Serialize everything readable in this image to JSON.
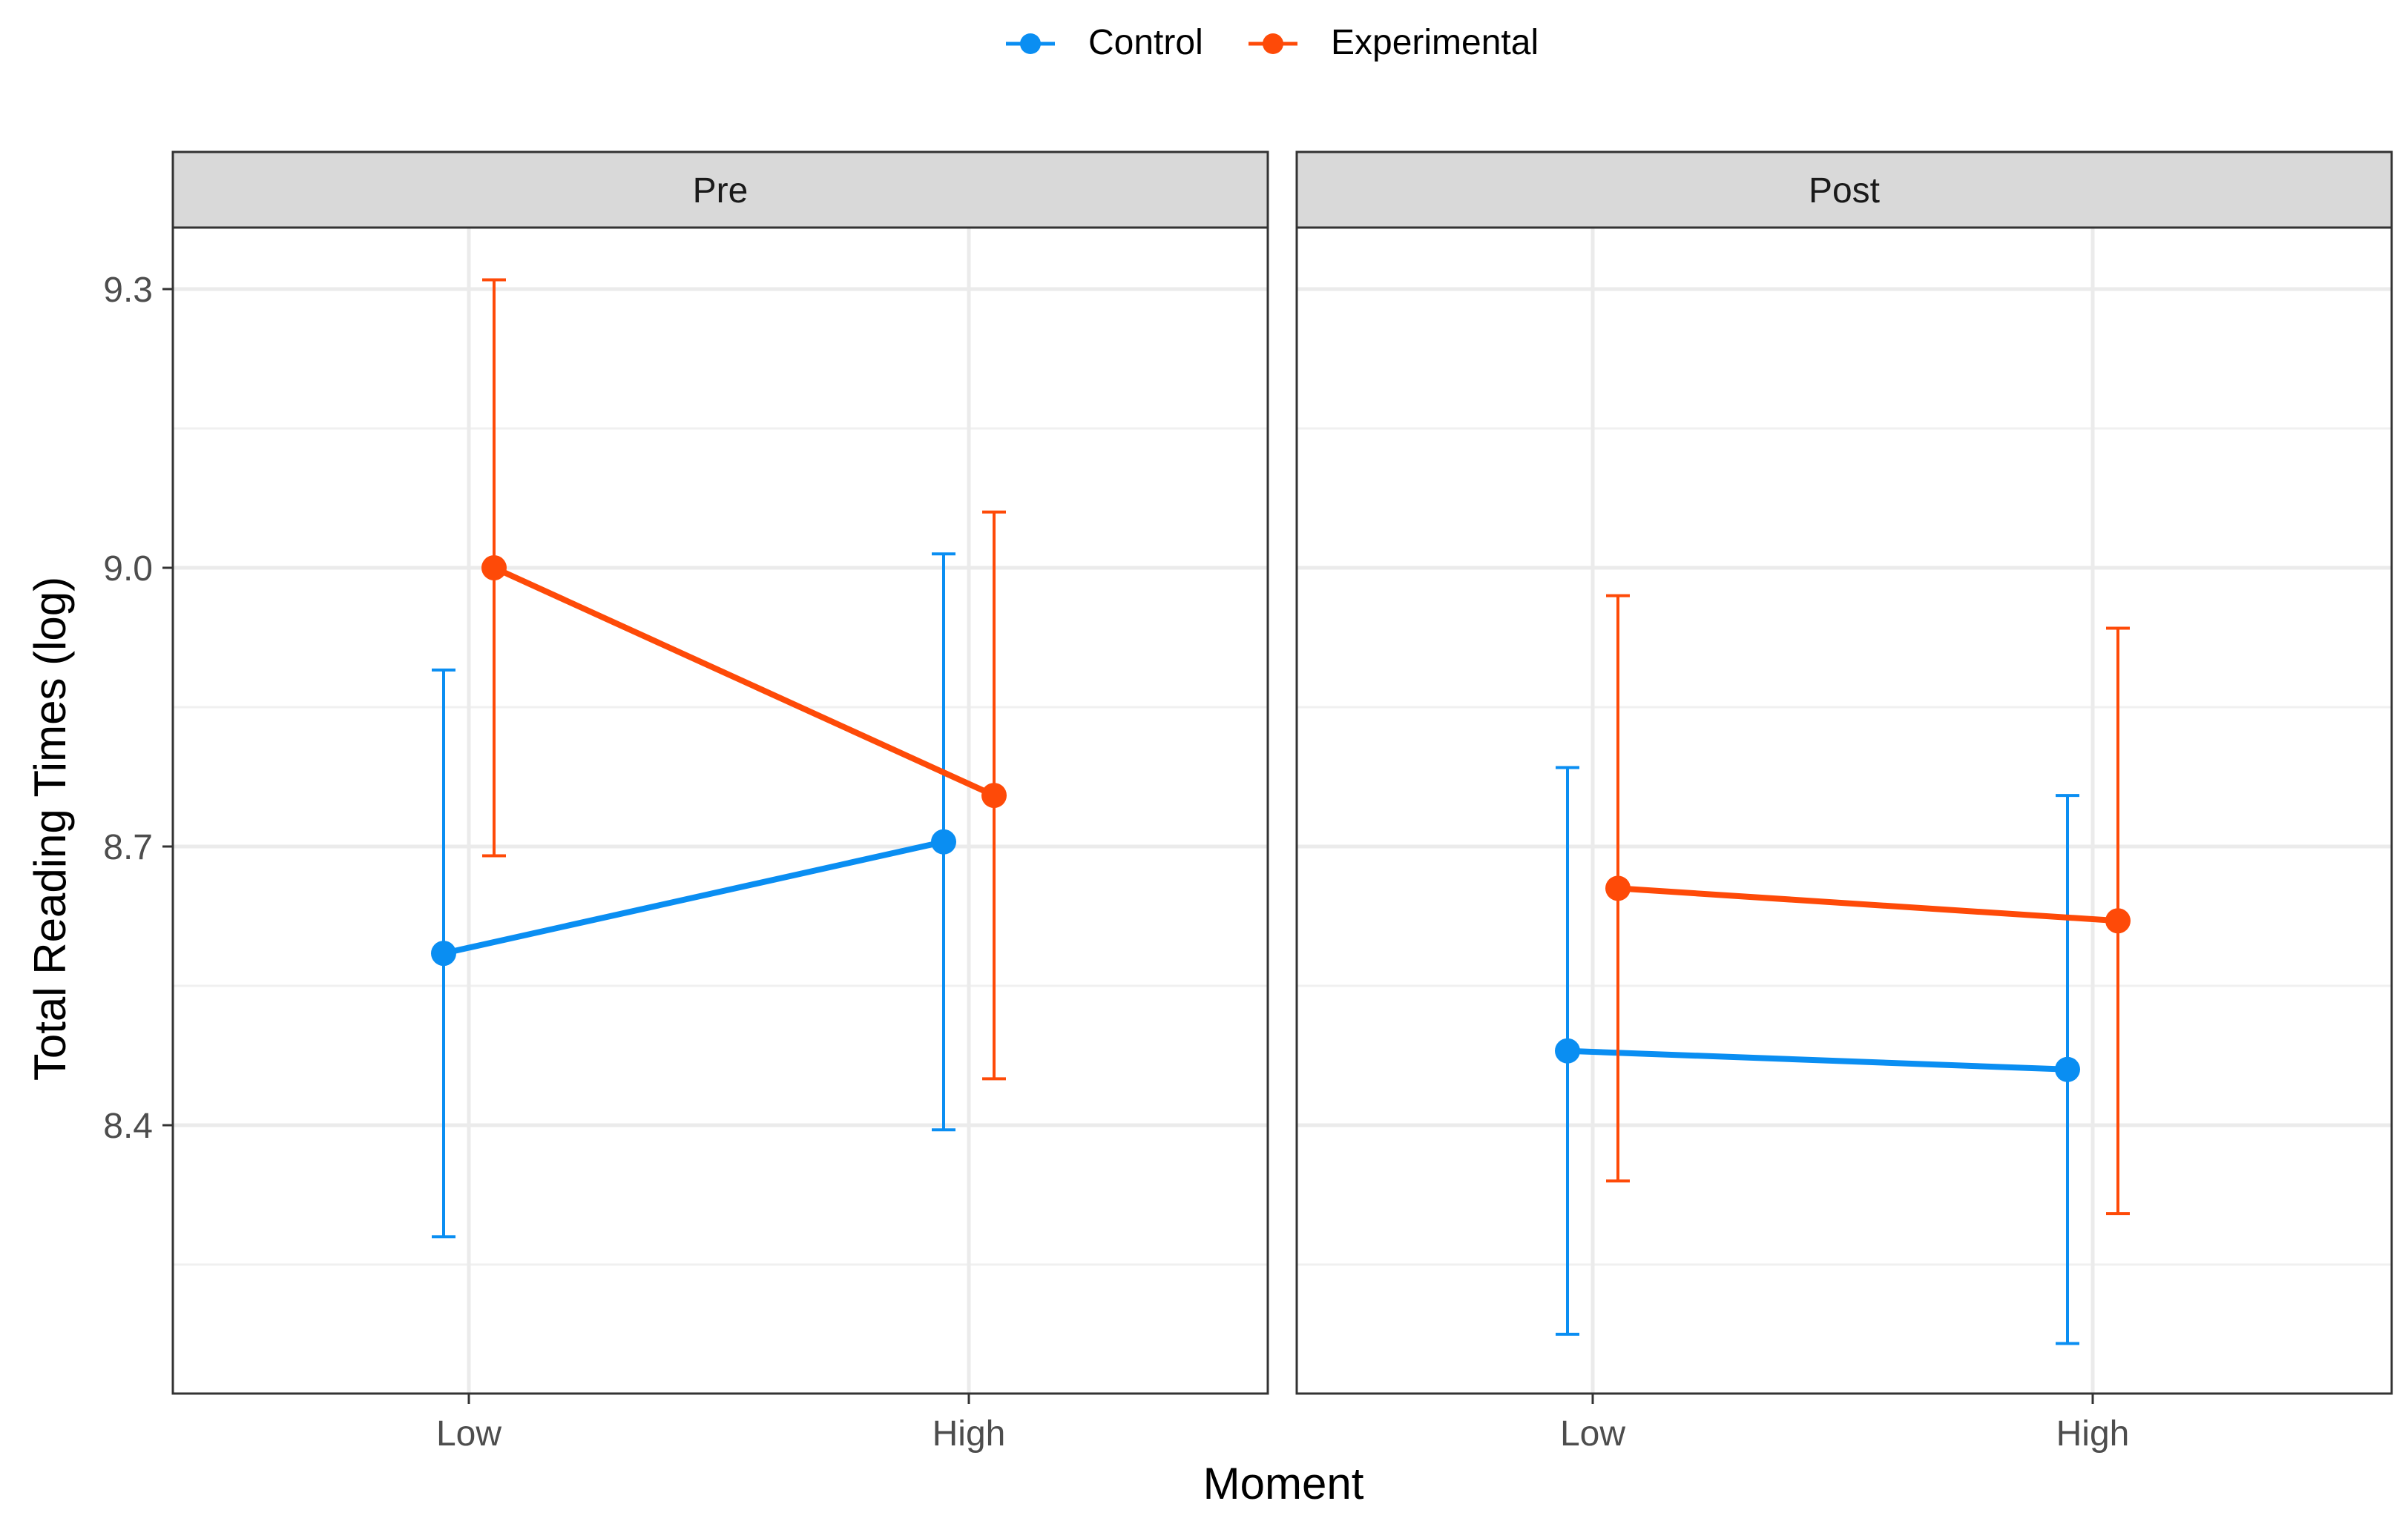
{
  "chart_data": {
    "type": "line",
    "x_label": "Moment",
    "y_label": "Total Reading Times (log)",
    "categories": [
      "Low",
      "High"
    ],
    "y_ticks": [
      8.4,
      8.7,
      9.0,
      9.3
    ],
    "y_tick_labels": [
      "8.4",
      "8.7",
      "9.0",
      "9.3"
    ],
    "ylim": [
      8.11,
      9.37
    ],
    "grid": true,
    "legend": {
      "position": "top",
      "entries": [
        {
          "name": "Control",
          "color": "#0a8ef2"
        },
        {
          "name": "Experimental",
          "color": "#fe4a08"
        }
      ]
    },
    "panels": [
      {
        "title": "Pre",
        "series": [
          {
            "name": "Control",
            "color": "#0a8ef2",
            "values": [
              8.585,
              8.705
            ],
            "lower": [
              8.28,
              8.395
            ],
            "upper": [
              8.89,
              9.015
            ]
          },
          {
            "name": "Experimental",
            "color": "#fe4a08",
            "values": [
              9.0,
              8.755
            ],
            "lower": [
              8.69,
              8.45
            ],
            "upper": [
              9.31,
              9.06
            ]
          }
        ]
      },
      {
        "title": "Post",
        "series": [
          {
            "name": "Control",
            "color": "#0a8ef2",
            "values": [
              8.48,
              8.46
            ],
            "lower": [
              8.175,
              8.165
            ],
            "upper": [
              8.785,
              8.755
            ]
          },
          {
            "name": "Experimental",
            "color": "#fe4a08",
            "values": [
              8.655,
              8.62
            ],
            "lower": [
              8.34,
              8.305
            ],
            "upper": [
              8.97,
              8.935
            ]
          }
        ]
      }
    ]
  }
}
